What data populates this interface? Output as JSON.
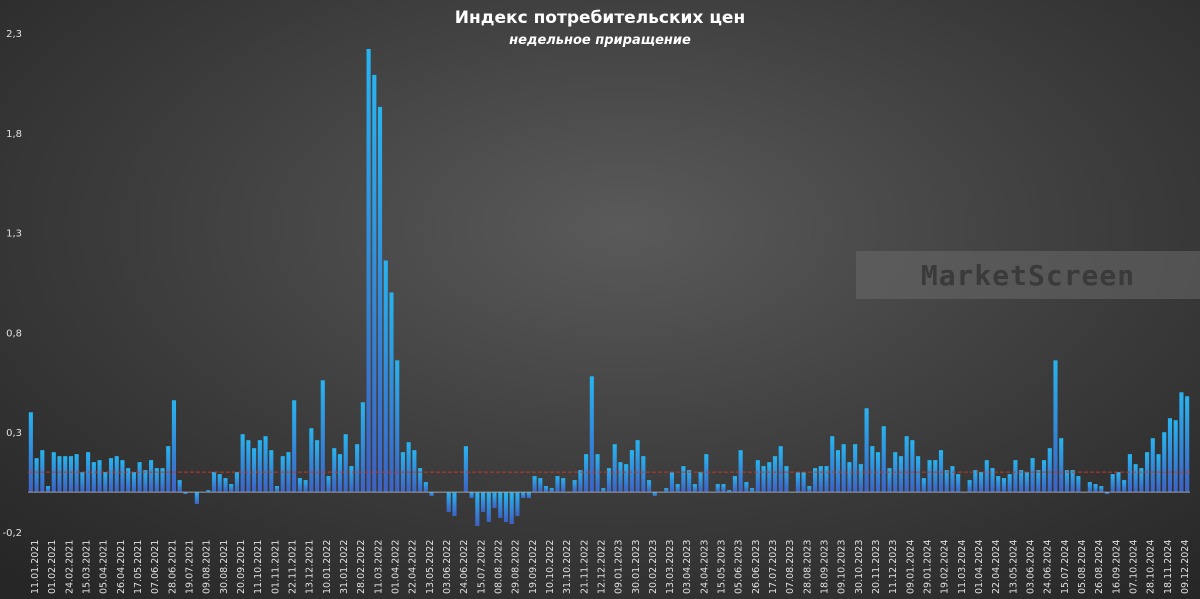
{
  "chart_data": {
    "type": "bar",
    "title": "Индекс потребительских цен",
    "subtitle": "недельное приращение",
    "ylim": [
      -0.2,
      2.3
    ],
    "y_ticks": [
      "2,3",
      "1,8",
      "1,3",
      "0,8",
      "0,3",
      "-0,2"
    ],
    "reference_line": 0.1,
    "grid": false,
    "watermark": "MarketScreen",
    "x_tick_labels": [
      "11.01.2021",
      "01.02.2021",
      "24.02.2021",
      "15.03.2021",
      "05.04.2021",
      "26.04.2021",
      "17.05.2021",
      "07.06.2021",
      "28.06.2021",
      "19.07.2021",
      "09.08.2021",
      "30.08.2021",
      "20.09.2021",
      "11.10.2021",
      "01.11.2021",
      "22.11.2021",
      "13.12.2021",
      "10.01.2022",
      "31.01.2022",
      "28.02.2022",
      "11.03.2022",
      "01.04.2022",
      "22.04.2022",
      "13.05.2022",
      "03.06.2022",
      "24.06.2022",
      "15.07.2022",
      "08.08.2022",
      "29.08.2022",
      "19.09.2022",
      "10.10.2022",
      "31.10.2022",
      "21.11.2022",
      "12.12.2022",
      "09.01.2023",
      "30.01.2023",
      "20.02.2023",
      "13.03.2023",
      "03.04.2023",
      "24.04.2023",
      "15.05.2023",
      "05.06.2023",
      "26.06.2023",
      "17.07.2023",
      "07.08.2023",
      "28.08.2023",
      "18.09.2023",
      "09.10.2023",
      "30.10.2023",
      "20.11.2023",
      "11.12.2023",
      "09.01.2024",
      "29.01.2024",
      "19.02.2024",
      "11.03.2024",
      "01.04.2024",
      "22.04.2024",
      "13.05.2024",
      "03.06.2024",
      "24.06.2024",
      "15.07.2024",
      "05.08.2024",
      "26.08.2024",
      "16.09.2024",
      "07.10.2024",
      "28.10.2024",
      "18.11.2024",
      "09.12.2024"
    ],
    "values": [
      0.4,
      0.17,
      0.21,
      0.03,
      0.2,
      0.18,
      0.18,
      0.18,
      0.19,
      0.1,
      0.2,
      0.15,
      0.16,
      0.1,
      0.17,
      0.18,
      0.16,
      0.12,
      0.1,
      0.15,
      0.11,
      0.16,
      0.12,
      0.12,
      0.23,
      0.46,
      0.06,
      -0.01,
      0.0,
      -0.06,
      0.0,
      0.01,
      0.1,
      0.09,
      0.07,
      0.04,
      0.1,
      0.29,
      0.26,
      0.22,
      0.26,
      0.28,
      0.21,
      0.03,
      0.18,
      0.2,
      0.46,
      0.07,
      0.06,
      0.32,
      0.26,
      0.56,
      0.08,
      0.22,
      0.19,
      0.29,
      0.13,
      0.24,
      0.45,
      2.22,
      2.09,
      1.93,
      1.16,
      1.0,
      0.66,
      0.2,
      0.25,
      0.21,
      0.12,
      0.05,
      -0.02,
      0.0,
      0.0,
      -0.1,
      -0.12,
      0.0,
      0.23,
      -0.03,
      -0.17,
      -0.1,
      -0.15,
      -0.08,
      -0.13,
      -0.15,
      -0.16,
      -0.12,
      -0.03,
      -0.03,
      0.08,
      0.07,
      0.03,
      0.02,
      0.08,
      0.07,
      0.0,
      0.06,
      0.11,
      0.19,
      0.58,
      0.19,
      0.02,
      0.12,
      0.24,
      0.15,
      0.14,
      0.21,
      0.26,
      0.18,
      0.06,
      -0.02,
      0.0,
      0.02,
      0.1,
      0.04,
      0.13,
      0.11,
      0.04,
      0.1,
      0.19,
      0.0,
      0.04,
      0.04,
      0.01,
      0.08,
      0.21,
      0.05,
      0.02,
      0.16,
      0.13,
      0.15,
      0.18,
      0.23,
      0.13,
      0.0,
      0.1,
      0.1,
      0.03,
      0.12,
      0.13,
      0.13,
      0.28,
      0.21,
      0.24,
      0.15,
      0.24,
      0.14,
      0.42,
      0.23,
      0.2,
      0.33,
      0.12,
      0.2,
      0.18,
      0.28,
      0.26,
      0.18,
      0.07,
      0.16,
      0.16,
      0.21,
      0.11,
      0.13,
      0.09,
      0.0,
      0.06,
      0.11,
      0.1,
      0.16,
      0.12,
      0.08,
      0.07,
      0.09,
      0.16,
      0.11,
      0.1,
      0.17,
      0.11,
      0.16,
      0.22,
      0.66,
      0.27,
      0.11,
      0.11,
      0.08,
      0.0,
      0.05,
      0.04,
      0.03,
      -0.01,
      0.09,
      0.1,
      0.06,
      0.19,
      0.14,
      0.12,
      0.2,
      0.27,
      0.19,
      0.3,
      0.37,
      0.36,
      0.5,
      0.48
    ]
  }
}
